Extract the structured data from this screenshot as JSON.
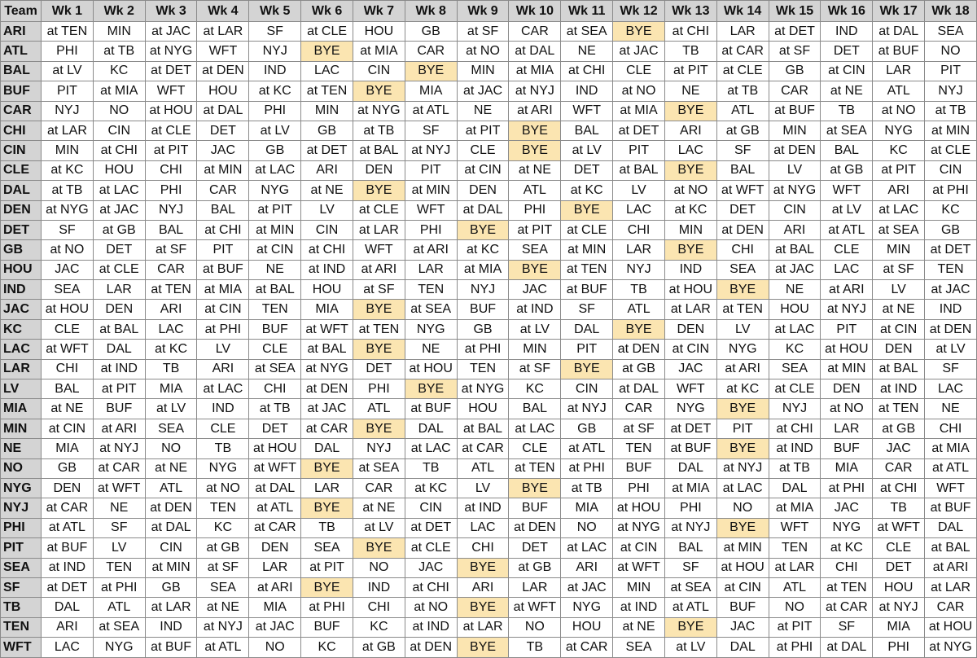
{
  "header": [
    "Team",
    "Wk 1",
    "Wk 2",
    "Wk 3",
    "Wk 4",
    "Wk 5",
    "Wk 6",
    "Wk 7",
    "Wk 8",
    "Wk 9",
    "Wk 10",
    "Wk 11",
    "Wk 12",
    "Wk 13",
    "Wk 14",
    "Wk 15",
    "Wk 16",
    "Wk 17",
    "Wk 18"
  ],
  "bye_color": "#fbe5b1",
  "rows": [
    {
      "team": "ARI",
      "games": [
        "at TEN",
        "MIN",
        "at JAC",
        "at LAR",
        "SF",
        "at CLE",
        "HOU",
        "GB",
        "at SF",
        "CAR",
        "at SEA",
        "BYE",
        "at CHI",
        "LAR",
        "at DET",
        "IND",
        "at DAL",
        "SEA"
      ]
    },
    {
      "team": "ATL",
      "games": [
        "PHI",
        "at TB",
        "at NYG",
        "WFT",
        "NYJ",
        "BYE",
        "at MIA",
        "CAR",
        "at NO",
        "at DAL",
        "NE",
        "at JAC",
        "TB",
        "at CAR",
        "at SF",
        "DET",
        "at BUF",
        "NO"
      ]
    },
    {
      "team": "BAL",
      "games": [
        "at LV",
        "KC",
        "at DET",
        "at DEN",
        "IND",
        "LAC",
        "CIN",
        "BYE",
        "MIN",
        "at MIA",
        "at CHI",
        "CLE",
        "at PIT",
        "at CLE",
        "GB",
        "at CIN",
        "LAR",
        "PIT"
      ]
    },
    {
      "team": "BUF",
      "games": [
        "PIT",
        "at MIA",
        "WFT",
        "HOU",
        "at KC",
        "at TEN",
        "BYE",
        "MIA",
        "at JAC",
        "at NYJ",
        "IND",
        "at NO",
        "NE",
        "at TB",
        "CAR",
        "at NE",
        "ATL",
        "NYJ"
      ]
    },
    {
      "team": "CAR",
      "games": [
        "NYJ",
        "NO",
        "at HOU",
        "at DAL",
        "PHI",
        "MIN",
        "at NYG",
        "at ATL",
        "NE",
        "at ARI",
        "WFT",
        "at MIA",
        "BYE",
        "ATL",
        "at BUF",
        "TB",
        "at NO",
        "at TB"
      ]
    },
    {
      "team": "CHI",
      "games": [
        "at LAR",
        "CIN",
        "at CLE",
        "DET",
        "at LV",
        "GB",
        "at TB",
        "SF",
        "at PIT",
        "BYE",
        "BAL",
        "at DET",
        "ARI",
        "at GB",
        "MIN",
        "at SEA",
        "NYG",
        "at MIN"
      ]
    },
    {
      "team": "CIN",
      "games": [
        "MIN",
        "at CHI",
        "at PIT",
        "JAC",
        "GB",
        "at DET",
        "at BAL",
        "at NYJ",
        "CLE",
        "BYE",
        "at LV",
        "PIT",
        "LAC",
        "SF",
        "at DEN",
        "BAL",
        "KC",
        "at CLE"
      ]
    },
    {
      "team": "CLE",
      "games": [
        "at KC",
        "HOU",
        "CHI",
        "at MIN",
        "at LAC",
        "ARI",
        "DEN",
        "PIT",
        "at CIN",
        "at NE",
        "DET",
        "at BAL",
        "BYE",
        "BAL",
        "LV",
        "at GB",
        "at PIT",
        "CIN"
      ]
    },
    {
      "team": "DAL",
      "games": [
        "at TB",
        "at LAC",
        "PHI",
        "CAR",
        "NYG",
        "at NE",
        "BYE",
        "at MIN",
        "DEN",
        "ATL",
        "at KC",
        "LV",
        "at NO",
        "at WFT",
        "at NYG",
        "WFT",
        "ARI",
        "at PHI"
      ]
    },
    {
      "team": "DEN",
      "games": [
        "at NYG",
        "at JAC",
        "NYJ",
        "BAL",
        "at PIT",
        "LV",
        "at CLE",
        "WFT",
        "at DAL",
        "PHI",
        "BYE",
        "LAC",
        "at KC",
        "DET",
        "CIN",
        "at LV",
        "at LAC",
        "KC"
      ]
    },
    {
      "team": "DET",
      "games": [
        "SF",
        "at GB",
        "BAL",
        "at CHI",
        "at MIN",
        "CIN",
        "at LAR",
        "PHI",
        "BYE",
        "at PIT",
        "at CLE",
        "CHI",
        "MIN",
        "at DEN",
        "ARI",
        "at ATL",
        "at SEA",
        "GB"
      ]
    },
    {
      "team": "GB",
      "games": [
        "at NO",
        "DET",
        "at SF",
        "PIT",
        "at CIN",
        "at CHI",
        "WFT",
        "at ARI",
        "at KC",
        "SEA",
        "at MIN",
        "LAR",
        "BYE",
        "CHI",
        "at BAL",
        "CLE",
        "MIN",
        "at DET"
      ]
    },
    {
      "team": "HOU",
      "games": [
        "JAC",
        "at CLE",
        "CAR",
        "at BUF",
        "NE",
        "at IND",
        "at ARI",
        "LAR",
        "at MIA",
        "BYE",
        "at TEN",
        "NYJ",
        "IND",
        "SEA",
        "at JAC",
        "LAC",
        "at SF",
        "TEN"
      ]
    },
    {
      "team": "IND",
      "games": [
        "SEA",
        "LAR",
        "at TEN",
        "at MIA",
        "at BAL",
        "HOU",
        "at SF",
        "TEN",
        "NYJ",
        "JAC",
        "at BUF",
        "TB",
        "at HOU",
        "BYE",
        "NE",
        "at ARI",
        "LV",
        "at JAC"
      ]
    },
    {
      "team": "JAC",
      "games": [
        "at HOU",
        "DEN",
        "ARI",
        "at CIN",
        "TEN",
        "MIA",
        "BYE",
        "at SEA",
        "BUF",
        "at IND",
        "SF",
        "ATL",
        "at LAR",
        "at TEN",
        "HOU",
        "at NYJ",
        "at NE",
        "IND"
      ]
    },
    {
      "team": "KC",
      "games": [
        "CLE",
        "at BAL",
        "LAC",
        "at PHI",
        "BUF",
        "at WFT",
        "at TEN",
        "NYG",
        "GB",
        "at LV",
        "DAL",
        "BYE",
        "DEN",
        "LV",
        "at LAC",
        "PIT",
        "at CIN",
        "at DEN"
      ]
    },
    {
      "team": "LAC",
      "games": [
        "at WFT",
        "DAL",
        "at KC",
        "LV",
        "CLE",
        "at BAL",
        "BYE",
        "NE",
        "at PHI",
        "MIN",
        "PIT",
        "at DEN",
        "at CIN",
        "NYG",
        "KC",
        "at HOU",
        "DEN",
        "at LV"
      ]
    },
    {
      "team": "LAR",
      "games": [
        "CHI",
        "at IND",
        "TB",
        "ARI",
        "at SEA",
        "at NYG",
        "DET",
        "at HOU",
        "TEN",
        "at SF",
        "BYE",
        "at GB",
        "JAC",
        "at ARI",
        "SEA",
        "at MIN",
        "at BAL",
        "SF"
      ]
    },
    {
      "team": "LV",
      "games": [
        "BAL",
        "at PIT",
        "MIA",
        "at LAC",
        "CHI",
        "at DEN",
        "PHI",
        "BYE",
        "at NYG",
        "KC",
        "CIN",
        "at DAL",
        "WFT",
        "at KC",
        "at CLE",
        "DEN",
        "at IND",
        "LAC"
      ]
    },
    {
      "team": "MIA",
      "games": [
        "at NE",
        "BUF",
        "at LV",
        "IND",
        "at TB",
        "at JAC",
        "ATL",
        "at BUF",
        "HOU",
        "BAL",
        "at NYJ",
        "CAR",
        "NYG",
        "BYE",
        "NYJ",
        "at NO",
        "at TEN",
        "NE"
      ]
    },
    {
      "team": "MIN",
      "games": [
        "at CIN",
        "at ARI",
        "SEA",
        "CLE",
        "DET",
        "at CAR",
        "BYE",
        "DAL",
        "at BAL",
        "at LAC",
        "GB",
        "at SF",
        "at DET",
        "PIT",
        "at CHI",
        "LAR",
        "at GB",
        "CHI"
      ]
    },
    {
      "team": "NE",
      "games": [
        "MIA",
        "at NYJ",
        "NO",
        "TB",
        "at HOU",
        "DAL",
        "NYJ",
        "at LAC",
        "at CAR",
        "CLE",
        "at ATL",
        "TEN",
        "at BUF",
        "BYE",
        "at IND",
        "BUF",
        "JAC",
        "at MIA"
      ]
    },
    {
      "team": "NO",
      "games": [
        "GB",
        "at CAR",
        "at NE",
        "NYG",
        "at WFT",
        "BYE",
        "at SEA",
        "TB",
        "ATL",
        "at TEN",
        "at PHI",
        "BUF",
        "DAL",
        "at NYJ",
        "at TB",
        "MIA",
        "CAR",
        "at ATL"
      ]
    },
    {
      "team": "NYG",
      "games": [
        "DEN",
        "at WFT",
        "ATL",
        "at NO",
        "at DAL",
        "LAR",
        "CAR",
        "at KC",
        "LV",
        "BYE",
        "at TB",
        "PHI",
        "at MIA",
        "at LAC",
        "DAL",
        "at PHI",
        "at CHI",
        "WFT"
      ]
    },
    {
      "team": "NYJ",
      "games": [
        "at CAR",
        "NE",
        "at DEN",
        "TEN",
        "at ATL",
        "BYE",
        "at NE",
        "CIN",
        "at IND",
        "BUF",
        "MIA",
        "at HOU",
        "PHI",
        "NO",
        "at MIA",
        "JAC",
        "TB",
        "at BUF"
      ]
    },
    {
      "team": "PHI",
      "games": [
        "at ATL",
        "SF",
        "at DAL",
        "KC",
        "at CAR",
        "TB",
        "at LV",
        "at DET",
        "LAC",
        "at DEN",
        "NO",
        "at NYG",
        "at NYJ",
        "BYE",
        "WFT",
        "NYG",
        "at WFT",
        "DAL"
      ]
    },
    {
      "team": "PIT",
      "games": [
        "at BUF",
        "LV",
        "CIN",
        "at GB",
        "DEN",
        "SEA",
        "BYE",
        "at CLE",
        "CHI",
        "DET",
        "at LAC",
        "at CIN",
        "BAL",
        "at MIN",
        "TEN",
        "at KC",
        "CLE",
        "at BAL"
      ]
    },
    {
      "team": "SEA",
      "games": [
        "at IND",
        "TEN",
        "at MIN",
        "at SF",
        "LAR",
        "at PIT",
        "NO",
        "JAC",
        "BYE",
        "at GB",
        "ARI",
        "at WFT",
        "SF",
        "at HOU",
        "at LAR",
        "CHI",
        "DET",
        "at ARI"
      ]
    },
    {
      "team": "SF",
      "games": [
        "at DET",
        "at PHI",
        "GB",
        "SEA",
        "at ARI",
        "BYE",
        "IND",
        "at CHI",
        "ARI",
        "LAR",
        "at JAC",
        "MIN",
        "at SEA",
        "at CIN",
        "ATL",
        "at TEN",
        "HOU",
        "at LAR"
      ]
    },
    {
      "team": "TB",
      "games": [
        "DAL",
        "ATL",
        "at LAR",
        "at NE",
        "MIA",
        "at PHI",
        "CHI",
        "at NO",
        "BYE",
        "at WFT",
        "NYG",
        "at IND",
        "at ATL",
        "BUF",
        "NO",
        "at CAR",
        "at NYJ",
        "CAR"
      ]
    },
    {
      "team": "TEN",
      "games": [
        "ARI",
        "at SEA",
        "IND",
        "at NYJ",
        "at JAC",
        "BUF",
        "KC",
        "at IND",
        "at LAR",
        "NO",
        "HOU",
        "at NE",
        "BYE",
        "JAC",
        "at PIT",
        "SF",
        "MIA",
        "at HOU"
      ]
    },
    {
      "team": "WFT",
      "games": [
        "LAC",
        "NYG",
        "at BUF",
        "at ATL",
        "NO",
        "KC",
        "at GB",
        "at DEN",
        "BYE",
        "TB",
        "at CAR",
        "SEA",
        "at LV",
        "DAL",
        "at PHI",
        "at DAL",
        "PHI",
        "at NYG"
      ]
    }
  ]
}
